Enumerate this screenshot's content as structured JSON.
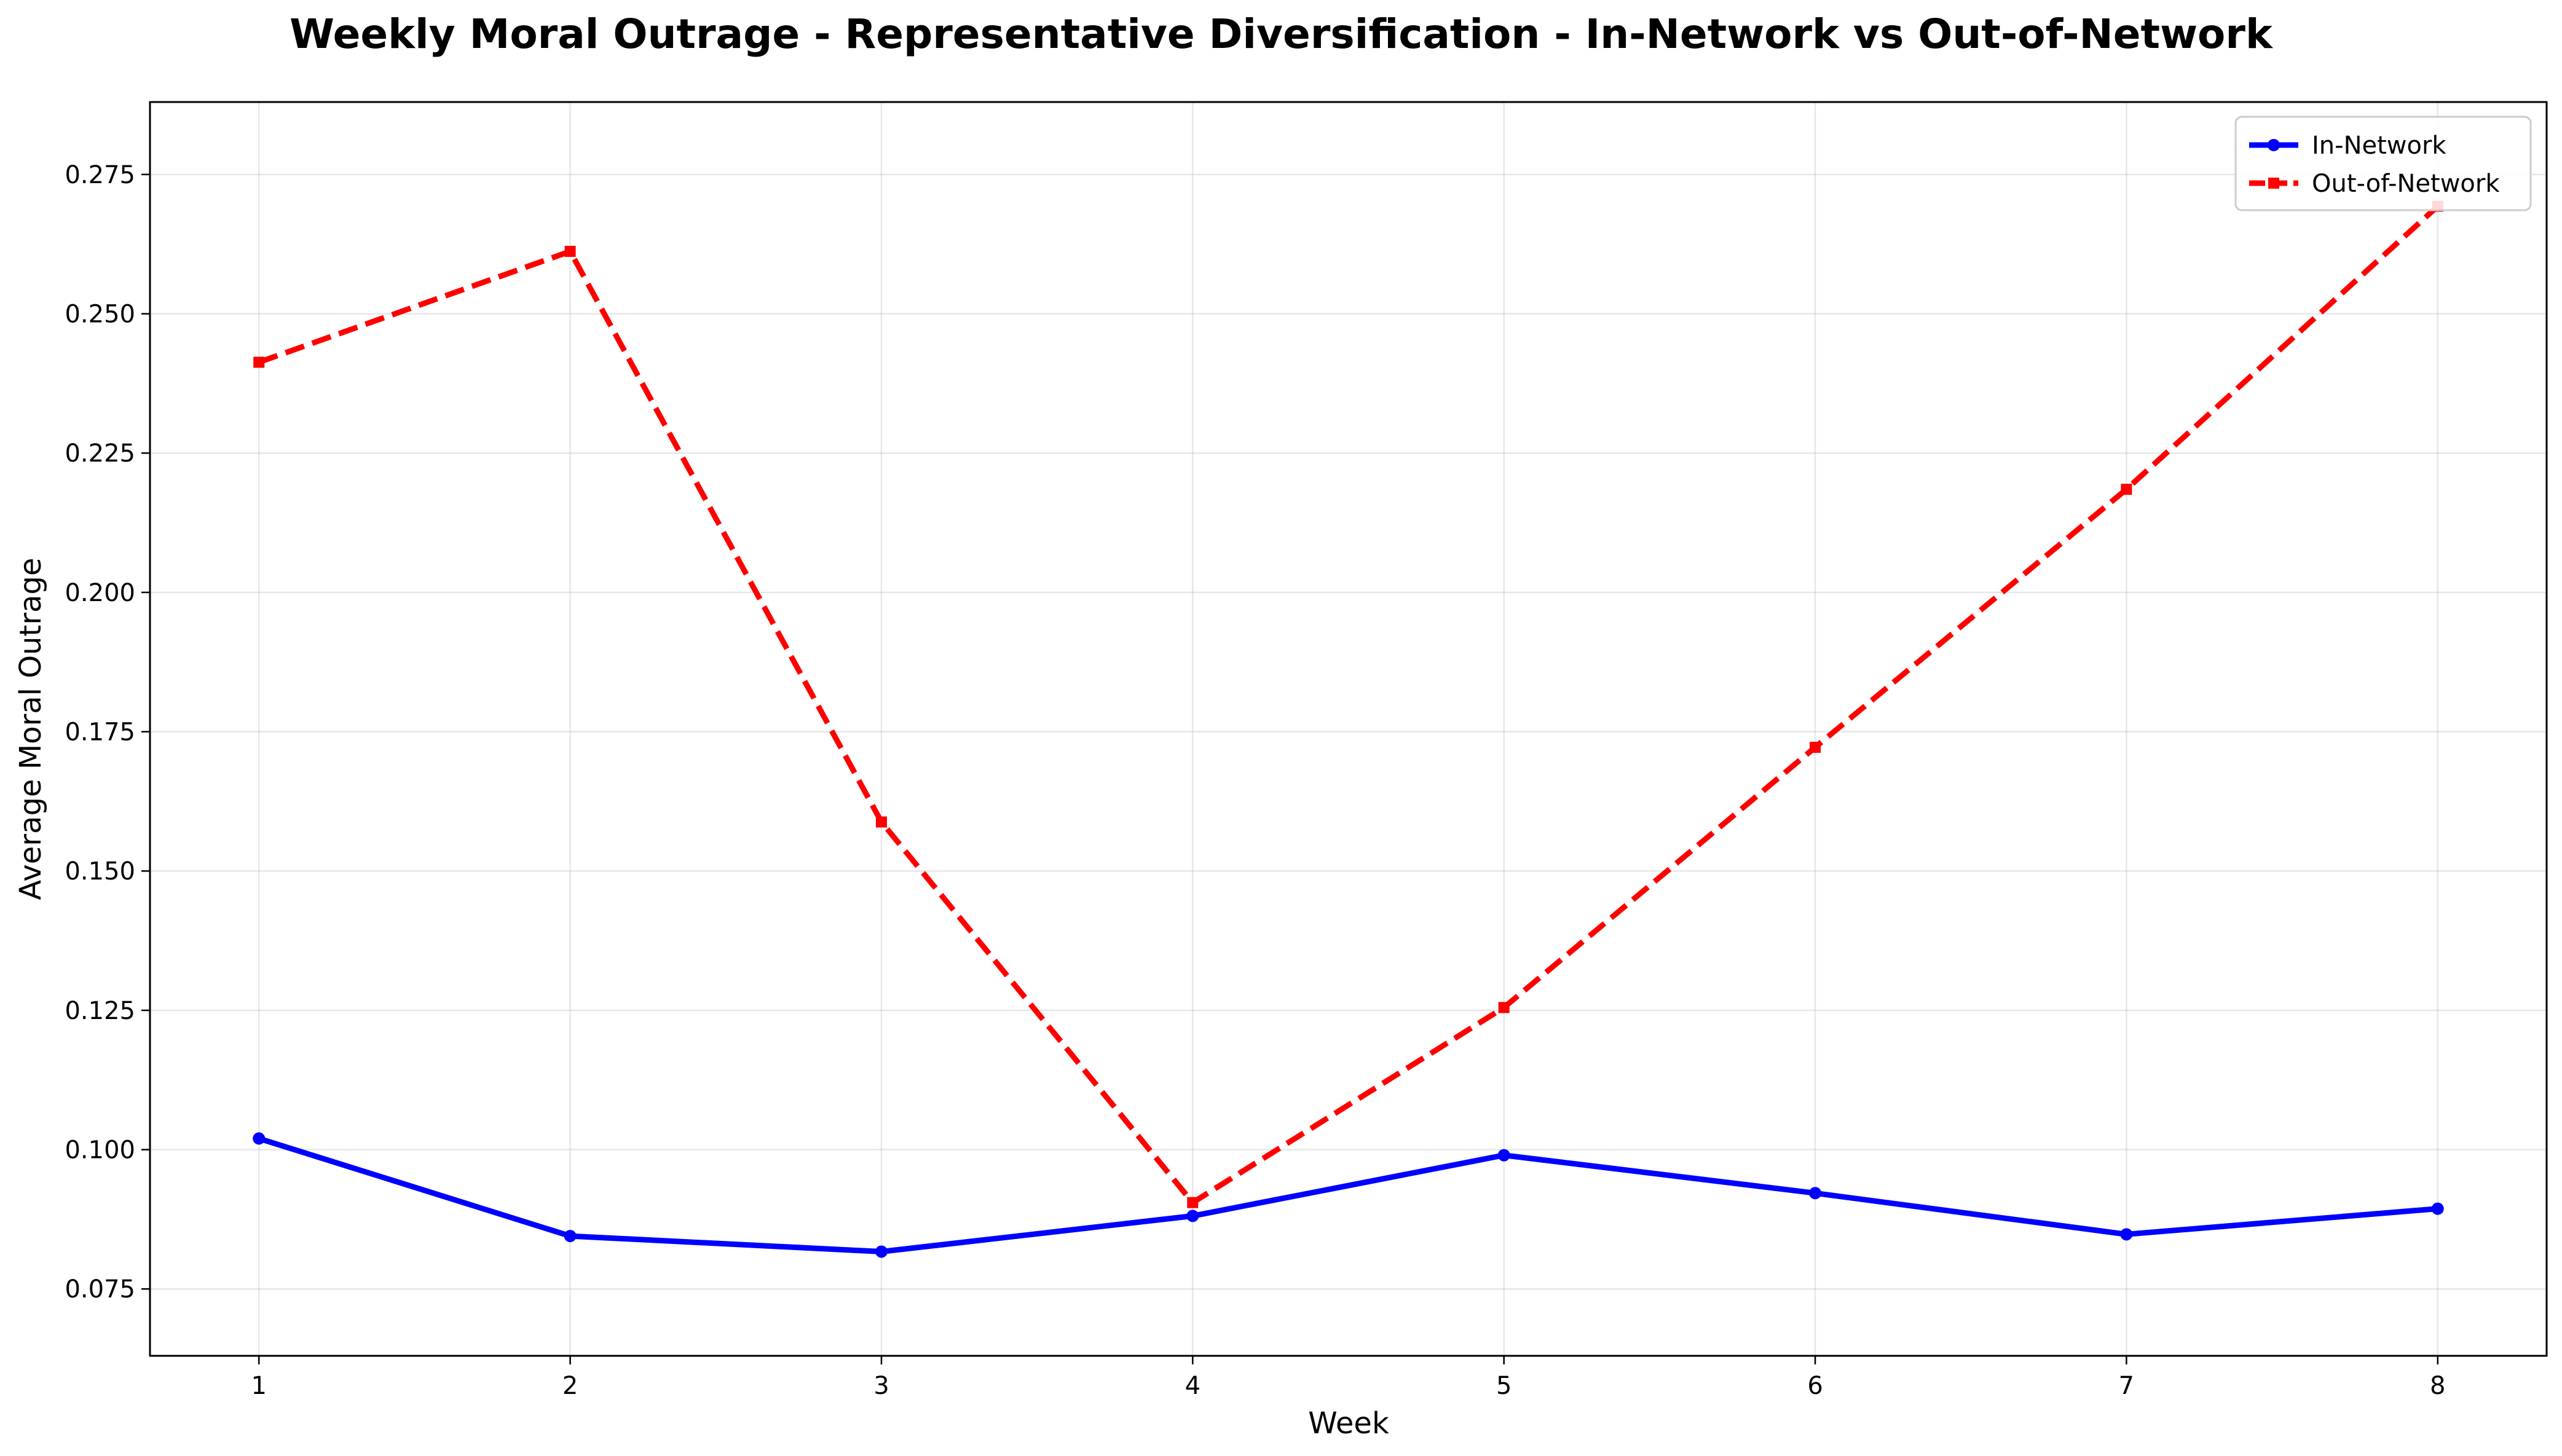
{
  "chart_data": {
    "type": "line",
    "title": "Weekly Moral Outrage - Representative Diversification - In-Network vs Out-of-Network",
    "xlabel": "Week",
    "ylabel": "Average Moral Outrage",
    "x": [
      1,
      2,
      3,
      4,
      5,
      6,
      7,
      8
    ],
    "xticks": [
      "1",
      "2",
      "3",
      "4",
      "5",
      "6",
      "7",
      "8"
    ],
    "yticks": [
      "0.075",
      "0.100",
      "0.125",
      "0.150",
      "0.175",
      "0.200",
      "0.225",
      "0.250",
      "0.275"
    ],
    "xlim": [
      0.65,
      8.35
    ],
    "ylim": [
      0.063,
      0.288
    ],
    "grid": true,
    "legend_position": "top-right",
    "series": [
      {
        "name": "In-Network",
        "color": "#0000ff",
        "line_style": "solid",
        "marker": "circle",
        "values": [
          0.102,
          0.0845,
          0.0817,
          0.0881,
          0.099,
          0.0922,
          0.0848,
          0.0894
        ]
      },
      {
        "name": "Out-of-Network",
        "color": "#ff0000",
        "line_style": "dashed",
        "marker": "square",
        "values": [
          0.2413,
          0.2612,
          0.1588,
          0.0905,
          0.1255,
          0.1722,
          0.2185,
          0.2693
        ]
      }
    ]
  }
}
